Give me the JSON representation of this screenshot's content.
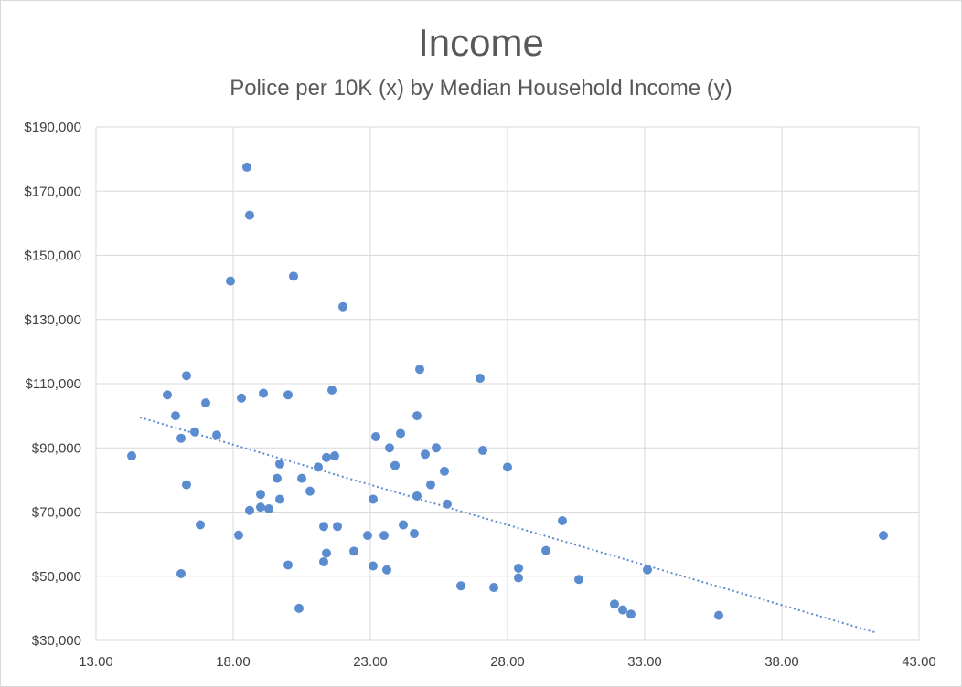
{
  "chart_data": {
    "type": "scatter",
    "title": "Income",
    "subtitle": "Police per 10K (x) by Median Household Income (y)",
    "xlim": [
      13,
      43
    ],
    "ylim": [
      30000,
      190000
    ],
    "x_ticks": [
      13,
      18,
      23,
      28,
      33,
      38,
      43
    ],
    "x_tick_labels": [
      "13.00",
      "18.00",
      "23.00",
      "28.00",
      "33.00",
      "38.00",
      "43.00"
    ],
    "y_ticks": [
      30000,
      50000,
      70000,
      90000,
      110000,
      130000,
      150000,
      170000,
      190000
    ],
    "y_tick_labels": [
      "$30,000",
      "$50,000",
      "$70,000",
      "$90,000",
      "$110,000",
      "$130,000",
      "$150,000",
      "$170,000",
      "$190,000"
    ],
    "grid": true,
    "colors": {
      "points": "#5b8ccf",
      "trendline": "#5b8ccf",
      "grid": "#d9d9d9"
    },
    "trendline": {
      "type": "linear",
      "style": "dotted",
      "start": [
        14.6,
        99500
      ],
      "end": [
        41.4,
        32500
      ]
    },
    "points": [
      [
        14.3,
        87500
      ],
      [
        15.6,
        106500
      ],
      [
        15.9,
        100000
      ],
      [
        16.1,
        93000
      ],
      [
        16.3,
        112500
      ],
      [
        16.1,
        50800
      ],
      [
        16.3,
        78500
      ],
      [
        16.6,
        95000
      ],
      [
        16.8,
        66000
      ],
      [
        17.0,
        104000
      ],
      [
        17.4,
        94000
      ],
      [
        17.9,
        142000
      ],
      [
        18.2,
        62800
      ],
      [
        18.3,
        105500
      ],
      [
        18.5,
        177500
      ],
      [
        18.6,
        162500
      ],
      [
        18.6,
        70500
      ],
      [
        19.0,
        75500
      ],
      [
        19.0,
        71500
      ],
      [
        19.1,
        107000
      ],
      [
        19.3,
        71000
      ],
      [
        19.6,
        80500
      ],
      [
        19.7,
        85000
      ],
      [
        19.7,
        74000
      ],
      [
        20.0,
        106500
      ],
      [
        20.0,
        53500
      ],
      [
        20.2,
        143500
      ],
      [
        20.5,
        80500
      ],
      [
        20.4,
        40000
      ],
      [
        20.8,
        76500
      ],
      [
        21.1,
        84000
      ],
      [
        21.3,
        65500
      ],
      [
        21.4,
        87000
      ],
      [
        21.4,
        57200
      ],
      [
        21.3,
        54500
      ],
      [
        21.6,
        108000
      ],
      [
        21.7,
        87500
      ],
      [
        21.8,
        65500
      ],
      [
        22.0,
        134000
      ],
      [
        22.4,
        57800
      ],
      [
        22.9,
        62700
      ],
      [
        23.1,
        53200
      ],
      [
        23.1,
        74000
      ],
      [
        23.2,
        93500
      ],
      [
        23.5,
        62700
      ],
      [
        23.6,
        52000
      ],
      [
        23.7,
        90000
      ],
      [
        23.9,
        84500
      ],
      [
        24.1,
        94500
      ],
      [
        24.2,
        66000
      ],
      [
        24.6,
        63300
      ],
      [
        24.7,
        100000
      ],
      [
        24.7,
        75000
      ],
      [
        24.8,
        114500
      ],
      [
        25.0,
        88000
      ],
      [
        25.2,
        78500
      ],
      [
        25.4,
        90000
      ],
      [
        25.7,
        82700
      ],
      [
        25.8,
        72500
      ],
      [
        26.3,
        47000
      ],
      [
        27.0,
        111700
      ],
      [
        27.1,
        89200
      ],
      [
        27.5,
        46500
      ],
      [
        28.0,
        84000
      ],
      [
        28.4,
        52500
      ],
      [
        28.4,
        49500
      ],
      [
        29.4,
        58000
      ],
      [
        30.0,
        67300
      ],
      [
        30.6,
        49000
      ],
      [
        31.9,
        41300
      ],
      [
        32.2,
        39500
      ],
      [
        32.5,
        38200
      ],
      [
        33.1,
        52000
      ],
      [
        35.7,
        37800
      ],
      [
        41.7,
        62700
      ]
    ]
  }
}
